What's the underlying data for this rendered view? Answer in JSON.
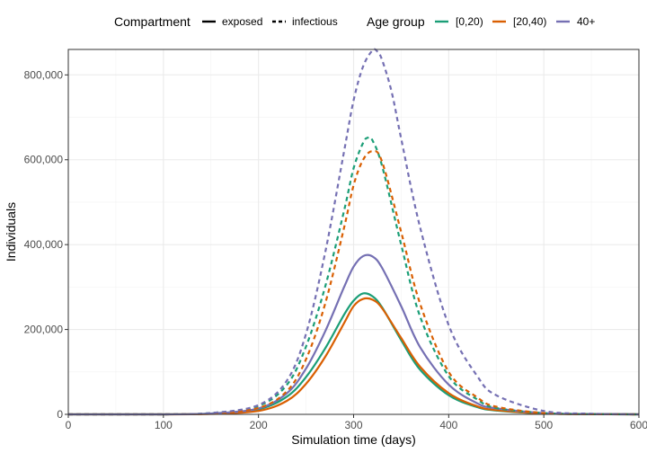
{
  "chart_data": {
    "type": "line",
    "xlabel": "Simulation time (days)",
    "ylabel": "Individuals",
    "xlim": [
      0,
      600
    ],
    "ylim": [
      0,
      860000
    ],
    "x_ticks": [
      0,
      100,
      200,
      300,
      400,
      500,
      600
    ],
    "y_ticks": [
      0,
      200000,
      400000,
      600000,
      800000
    ],
    "x_tick_labels": [
      "0",
      "100",
      "200",
      "300",
      "400",
      "500",
      "600"
    ],
    "y_tick_labels": [
      "0",
      "200,000",
      "400,000",
      "600,000",
      "800,000"
    ],
    "grid": true,
    "legend_position": "top",
    "legend": {
      "compartment_title": "Compartment",
      "compartment_items": [
        {
          "label": "exposed",
          "dash": "solid"
        },
        {
          "label": "infectious",
          "dash": "dashed"
        }
      ],
      "age_title": "Age group",
      "age_items": [
        {
          "label": "[0,20)",
          "color": "#1b9e77"
        },
        {
          "label": "[20,40)",
          "color": "#d95f02"
        },
        {
          "label": "40+",
          "color": "#7570b3"
        }
      ]
    },
    "series": [
      {
        "age_group": "[0,20)",
        "compartment": "exposed",
        "color": "#1b9e77",
        "dash": "solid",
        "x": [
          0,
          100,
          150,
          200,
          230,
          250,
          270,
          290,
          300,
          310,
          320,
          330,
          350,
          370,
          400,
          430,
          450,
          500,
          550,
          600
        ],
        "y": [
          0,
          0,
          2000,
          12000,
          42000,
          88000,
          155000,
          235000,
          268000,
          285000,
          278000,
          252000,
          175000,
          105000,
          45000,
          17000,
          9000,
          2000,
          500,
          0
        ]
      },
      {
        "age_group": "[20,40)",
        "compartment": "exposed",
        "color": "#d95f02",
        "dash": "solid",
        "x": [
          0,
          100,
          150,
          200,
          230,
          250,
          270,
          290,
          300,
          310,
          320,
          330,
          350,
          370,
          400,
          430,
          450,
          500,
          550,
          600
        ],
        "y": [
          0,
          0,
          1000,
          8000,
          32000,
          72000,
          135000,
          215000,
          255000,
          272000,
          270000,
          250000,
          180000,
          112000,
          50000,
          19000,
          10000,
          2000,
          500,
          0
        ]
      },
      {
        "age_group": "40+",
        "compartment": "exposed",
        "color": "#7570b3",
        "dash": "solid",
        "x": [
          0,
          100,
          150,
          200,
          230,
          250,
          270,
          290,
          300,
          310,
          320,
          330,
          350,
          370,
          400,
          430,
          450,
          500,
          550,
          600
        ],
        "y": [
          0,
          0,
          2000,
          14000,
          50000,
          108000,
          195000,
          300000,
          348000,
          373000,
          372000,
          345000,
          255000,
          158000,
          70000,
          26000,
          14000,
          3000,
          600,
          0
        ]
      },
      {
        "age_group": "[0,20)",
        "compartment": "infectious",
        "color": "#1b9e77",
        "dash": "dashed",
        "x": [
          0,
          100,
          150,
          200,
          230,
          250,
          270,
          290,
          300,
          310,
          315,
          320,
          330,
          350,
          370,
          400,
          430,
          450,
          500,
          550,
          600
        ],
        "y": [
          0,
          0,
          3000,
          20000,
          70000,
          160000,
          300000,
          480000,
          580000,
          640000,
          652000,
          645000,
          585000,
          400000,
          230000,
          90000,
          35000,
          15000,
          3000,
          600,
          0
        ]
      },
      {
        "age_group": "[20,40)",
        "compartment": "infectious",
        "color": "#d95f02",
        "dash": "dashed",
        "x": [
          0,
          100,
          150,
          200,
          230,
          250,
          270,
          290,
          300,
          310,
          320,
          330,
          350,
          370,
          400,
          430,
          450,
          500,
          550,
          600
        ],
        "y": [
          0,
          0,
          2000,
          15000,
          55000,
          130000,
          260000,
          440000,
          540000,
          600000,
          620000,
          595000,
          430000,
          260000,
          100000,
          40000,
          18000,
          3000,
          600,
          0
        ]
      },
      {
        "age_group": "40+",
        "compartment": "infectious",
        "color": "#7570b3",
        "dash": "dashed",
        "x": [
          0,
          100,
          150,
          200,
          230,
          250,
          270,
          290,
          300,
          310,
          320,
          325,
          330,
          340,
          350,
          370,
          400,
          430,
          450,
          500,
          550,
          600
        ],
        "y": [
          0,
          0,
          3000,
          22000,
          80000,
          190000,
          380000,
          620000,
          740000,
          820000,
          858000,
          855000,
          835000,
          760000,
          650000,
          440000,
          210000,
          90000,
          45000,
          8000,
          1500,
          0
        ]
      }
    ]
  }
}
